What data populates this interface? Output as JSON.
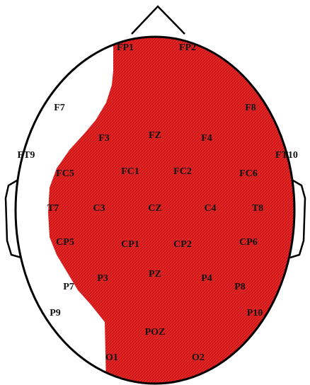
{
  "electrodes": [
    "FP1",
    "FP2",
    "F7",
    "F8",
    "F3",
    "FZ",
    "F4",
    "FT9",
    "FT10",
    "FC5",
    "FC1",
    "FC2",
    "FC6",
    "T7",
    "C3",
    "CZ",
    "C4",
    "T8",
    "CP5",
    "CP1",
    "CP2",
    "CP6",
    "P7",
    "P3",
    "PZ",
    "P4",
    "P8",
    "P9",
    "P10",
    "POZ",
    "O1",
    "O2"
  ]
}
